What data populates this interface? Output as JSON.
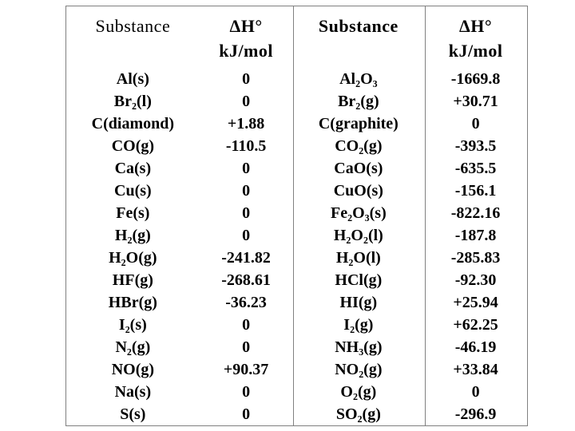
{
  "colors": {
    "background": "#ffffff",
    "border": "#808080",
    "text": "#000000"
  },
  "table": {
    "header": {
      "left_substance": "Substance",
      "left_unit_line1": "ΔH°",
      "left_unit_line2": "kJ/mol",
      "right_substance": "Substance",
      "right_unit_line1": "ΔH°",
      "right_unit_line2": "kJ/mol"
    },
    "rows": [
      {
        "s_left": "Al(s)",
        "v_left": "0",
        "s_right": "Al₂O₃",
        "v_right": "-1669.8"
      },
      {
        "s_left": "Br₂(l)",
        "v_left": "0",
        "s_right": "Br₂(g)",
        "v_right": "+30.71"
      },
      {
        "s_left": "C(diamond)",
        "v_left": "+1.88",
        "s_right": "C(graphite)",
        "v_right": "0"
      },
      {
        "s_left": "CO(g)",
        "v_left": "-110.5",
        "s_right": "CO₂(g)",
        "v_right": "-393.5"
      },
      {
        "s_left": "Ca(s)",
        "v_left": "0",
        "s_right": "CaO(s)",
        "v_right": "-635.5"
      },
      {
        "s_left": "Cu(s)",
        "v_left": "0",
        "s_right": "CuO(s)",
        "v_right": "-156.1"
      },
      {
        "s_left": "Fe(s)",
        "v_left": "0",
        "s_right": "Fe₂O₃(s)",
        "v_right": "-822.16"
      },
      {
        "s_left": "H₂(g)",
        "v_left": "0",
        "s_right": "H₂O₂(l)",
        "v_right": "-187.8"
      },
      {
        "s_left": "H₂O(g)",
        "v_left": "-241.82",
        "s_right": "H₂O(l)",
        "v_right": "-285.83"
      },
      {
        "s_left": "HF(g)",
        "v_left": "-268.61",
        "s_right": "HCl(g)",
        "v_right": "-92.30"
      },
      {
        "s_left": "HBr(g)",
        "v_left": "-36.23",
        "s_right": "HI(g)",
        "v_right": "+25.94"
      },
      {
        "s_left": "I₂(s)",
        "v_left": "0",
        "s_right": "I₂(g)",
        "v_right": "+62.25"
      },
      {
        "s_left": "N₂(g)",
        "v_left": "0",
        "s_right": "NH₃(g)",
        "v_right": "-46.19"
      },
      {
        "s_left": "NO(g)",
        "v_left": "+90.37",
        "s_right": "NO₂(g)",
        "v_right": "+33.84"
      },
      {
        "s_left": "Na(s)",
        "v_left": "0",
        "s_right": "O₂(g)",
        "v_right": "0"
      },
      {
        "s_left": "S(s)",
        "v_left": "0",
        "s_right": "SO₂(g)",
        "v_right": "-296.9"
      }
    ]
  }
}
